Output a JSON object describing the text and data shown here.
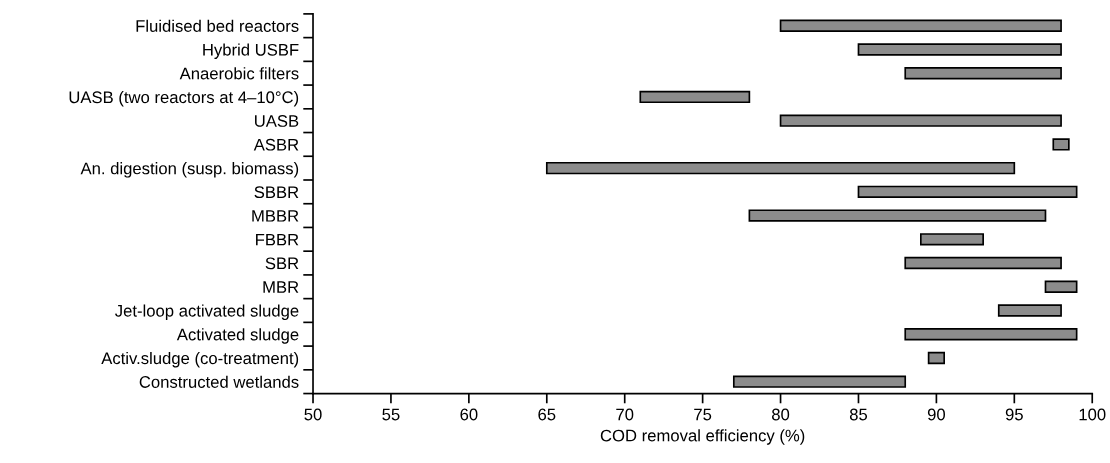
{
  "chart_data": {
    "type": "bar",
    "orientation": "horizontal",
    "xlabel": "COD removal efficiency (%)",
    "categories": [
      "Fluidised bed reactors",
      "Hybrid USBF",
      "Anaerobic filters",
      "UASB (two reactors at 4–10°C)",
      "UASB",
      "ASBR",
      "An. digestion (susp. biomass)",
      "SBBR",
      "MBBR",
      "FBBR",
      "SBR",
      "MBR",
      "Jet-loop activated sludge",
      "Activated sludge",
      "Activ.sludge (co-treatment)",
      "Constructed wetlands"
    ],
    "base": [
      80,
      85,
      88,
      71,
      80,
      97.5,
      65,
      85,
      78,
      89,
      88,
      97,
      94,
      88,
      89.5,
      77
    ],
    "values": [
      18,
      13,
      10,
      7,
      18,
      1,
      30,
      14,
      19,
      4,
      10,
      2,
      4,
      11,
      1,
      11
    ],
    "color": "#8c8c8c",
    "xlim": [
      50,
      100
    ],
    "xticks": [
      50,
      55,
      60,
      65,
      70,
      75,
      80,
      85,
      90,
      95,
      100
    ],
    "grid": false,
    "legend": false
  }
}
